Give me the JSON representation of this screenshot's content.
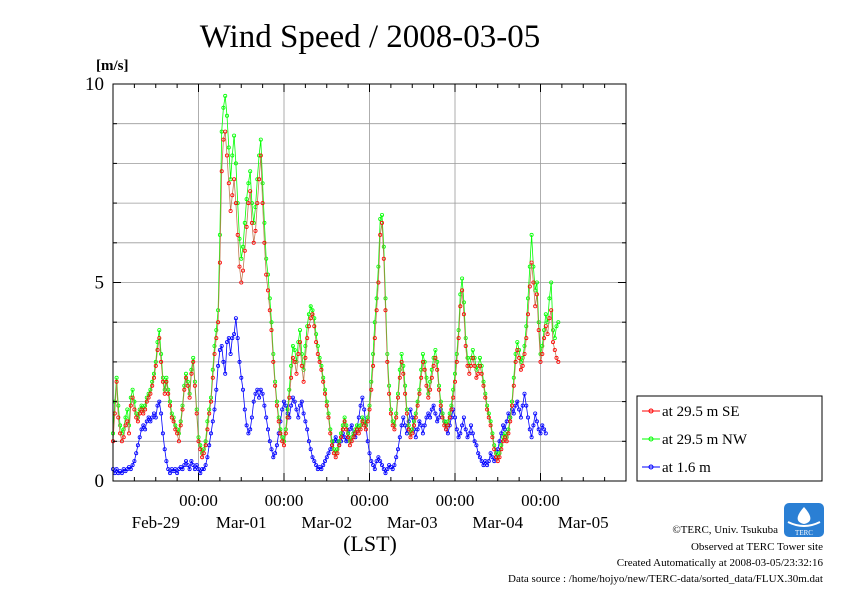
{
  "title": "Wind Speed / 2008-03-05",
  "chart_data": {
    "type": "line",
    "ylabel": "[m/s]",
    "xlabel": "(LST)",
    "ylim": [
      0,
      10
    ],
    "xlim": [
      "2008-02-29T00:00",
      "2008-03-06T00:00"
    ],
    "y_ticks": [
      "0",
      "5",
      "10"
    ],
    "time_tick_label": "00:00",
    "day_labels": [
      "Feb-29",
      "Mar-01",
      "Mar-02",
      "Mar-03",
      "Mar-04",
      "Mar-05"
    ],
    "grid": true,
    "legend_position": "right",
    "sample_interval_minutes": 30,
    "series": [
      {
        "name": "at 29.5 m SE",
        "color": "#ff0000",
        "marker": "circle",
        "values": [
          1.0,
          1.7,
          2.5,
          1.6,
          1.2,
          1.0,
          1.1,
          1.4,
          1.5,
          1.2,
          1.9,
          2.1,
          1.8,
          1.6,
          1.5,
          1.7,
          1.8,
          1.7,
          1.8,
          2.0,
          2.1,
          2.2,
          2.4,
          2.6,
          2.9,
          3.3,
          3.6,
          3.0,
          2.5,
          2.2,
          2.5,
          2.2,
          1.9,
          1.6,
          1.5,
          1.3,
          1.2,
          1.0,
          1.4,
          1.8,
          2.3,
          2.6,
          2.4,
          2.1,
          2.7,
          3.0,
          2.4,
          1.7,
          1.0,
          0.8,
          0.6,
          0.7,
          0.9,
          1.3,
          1.7,
          2.0,
          2.6,
          3.2,
          3.6,
          4.0,
          5.5,
          7.8,
          8.6,
          8.8,
          8.2,
          7.5,
          6.8,
          7.2,
          7.6,
          7.0,
          6.2,
          5.4,
          5.0,
          5.3,
          5.8,
          6.4,
          7.0,
          7.3,
          6.5,
          6.0,
          6.3,
          7.0,
          7.6,
          8.2,
          7.0,
          6.0,
          5.2,
          4.8,
          4.3,
          3.8,
          3.0,
          2.4,
          1.9,
          1.5,
          1.2,
          1.0,
          0.9,
          1.2,
          1.6,
          2.1,
          2.6,
          3.1,
          3.0,
          2.7,
          3.2,
          3.5,
          2.9,
          2.5,
          3.1,
          3.6,
          3.9,
          4.1,
          4.2,
          3.9,
          3.5,
          3.2,
          3.0,
          2.8,
          2.5,
          2.2,
          1.9,
          1.6,
          1.2,
          0.9,
          0.7,
          0.6,
          0.7,
          0.9,
          1.1,
          1.3,
          1.5,
          1.3,
          1.1,
          0.9,
          1.0,
          1.1,
          1.2,
          1.3,
          1.2,
          1.3,
          1.5,
          1.4,
          1.3,
          1.5,
          1.8,
          2.3,
          2.9,
          3.6,
          4.3,
          5.0,
          6.2,
          6.5,
          5.6,
          4.3,
          3.0,
          2.2,
          1.7,
          1.4,
          1.3,
          1.6,
          2.1,
          2.6,
          3.0,
          2.7,
          2.2,
          1.7,
          1.3,
          1.1,
          1.2,
          1.4,
          1.6,
          1.9,
          2.2,
          2.6,
          3.0,
          2.8,
          2.4,
          2.1,
          2.3,
          2.6,
          2.9,
          3.1,
          2.8,
          2.3,
          1.9,
          1.6,
          1.4,
          1.3,
          1.4,
          1.6,
          1.8,
          2.1,
          2.5,
          3.0,
          3.6,
          4.4,
          4.8,
          4.2,
          3.4,
          2.9,
          2.7,
          2.9,
          3.1,
          2.9,
          2.6,
          2.7,
          2.9,
          2.7,
          2.4,
          2.1,
          1.8,
          1.6,
          1.4,
          1.1,
          0.8,
          0.6,
          0.5,
          0.6,
          0.8,
          1.0,
          1.1,
          1.0,
          1.2,
          1.5,
          1.9,
          2.4,
          3.0,
          3.3,
          3.1,
          2.8,
          2.9,
          3.2,
          3.6,
          4.2,
          4.9,
          5.5,
          5.0,
          4.4,
          4.7,
          3.8,
          3.0,
          3.2,
          3.6,
          3.9,
          3.7,
          4.1,
          4.3,
          3.5,
          3.3,
          3.1,
          3.0
        ]
      },
      {
        "name": "at 29.5 m NW",
        "color": "#00ff00",
        "marker": "circle",
        "values": [
          1.2,
          2.0,
          2.6,
          1.9,
          1.4,
          1.2,
          1.3,
          1.6,
          1.8,
          1.4,
          2.1,
          2.3,
          2.0,
          1.7,
          1.6,
          1.8,
          1.9,
          1.8,
          1.9,
          2.1,
          2.2,
          2.3,
          2.5,
          2.7,
          3.0,
          3.5,
          3.8,
          3.2,
          2.6,
          2.3,
          2.6,
          2.3,
          2.0,
          1.7,
          1.6,
          1.4,
          1.3,
          1.2,
          1.5,
          1.9,
          2.4,
          2.7,
          2.5,
          2.2,
          2.8,
          3.1,
          2.5,
          1.8,
          1.1,
          0.9,
          0.7,
          0.8,
          1.0,
          1.5,
          1.8,
          2.1,
          2.8,
          3.4,
          3.8,
          4.3,
          6.2,
          8.8,
          9.4,
          9.7,
          9.2,
          8.4,
          7.6,
          8.2,
          8.7,
          8.0,
          7.0,
          6.1,
          5.6,
          5.9,
          6.5,
          7.1,
          7.5,
          7.8,
          7.0,
          6.5,
          6.9,
          7.6,
          8.2,
          8.6,
          7.5,
          6.5,
          5.6,
          5.2,
          4.6,
          4.0,
          3.2,
          2.5,
          2.0,
          1.6,
          1.3,
          1.1,
          1.0,
          1.3,
          1.8,
          2.3,
          2.9,
          3.4,
          3.3,
          3.0,
          3.5,
          3.8,
          3.2,
          2.8,
          3.4,
          3.9,
          4.2,
          4.4,
          4.3,
          4.1,
          3.7,
          3.4,
          3.1,
          2.9,
          2.6,
          2.3,
          2.0,
          1.7,
          1.3,
          1.0,
          0.8,
          0.7,
          0.8,
          1.0,
          1.2,
          1.4,
          1.6,
          1.4,
          1.2,
          1.0,
          1.1,
          1.2,
          1.3,
          1.4,
          1.3,
          1.4,
          1.6,
          1.5,
          1.4,
          1.6,
          1.9,
          2.5,
          3.2,
          4.0,
          4.6,
          5.4,
          6.6,
          6.7,
          5.9,
          4.6,
          3.2,
          2.4,
          1.8,
          1.5,
          1.4,
          1.7,
          2.2,
          2.8,
          3.2,
          2.9,
          2.4,
          1.8,
          1.4,
          1.2,
          1.3,
          1.5,
          1.7,
          2.0,
          2.3,
          2.8,
          3.2,
          3.0,
          2.6,
          2.2,
          2.5,
          2.8,
          3.1,
          3.3,
          3.0,
          2.4,
          2.0,
          1.7,
          1.5,
          1.4,
          1.5,
          1.7,
          1.9,
          2.3,
          2.7,
          3.2,
          3.8,
          4.7,
          5.1,
          4.5,
          3.6,
          3.1,
          2.9,
          3.1,
          3.3,
          3.1,
          2.8,
          2.9,
          3.1,
          2.9,
          2.5,
          2.2,
          1.9,
          1.7,
          1.5,
          1.2,
          0.9,
          0.7,
          0.6,
          0.7,
          0.9,
          1.1,
          1.2,
          1.1,
          1.3,
          1.6,
          2.0,
          2.6,
          3.2,
          3.5,
          3.3,
          3.0,
          3.1,
          3.4,
          3.9,
          4.6,
          5.4,
          6.2,
          5.4,
          4.8,
          5.0,
          4.0,
          3.2,
          3.4,
          3.8,
          4.2,
          4.0,
          4.6,
          5.0,
          3.8,
          3.6,
          3.9,
          4.0
        ]
      },
      {
        "name": "at 1.6 m",
        "color": "#0000ff",
        "marker": "circle",
        "values": [
          0.3,
          0.2,
          0.3,
          0.2,
          0.25,
          0.2,
          0.3,
          0.25,
          0.3,
          0.35,
          0.3,
          0.4,
          0.5,
          0.7,
          0.9,
          1.1,
          1.3,
          1.4,
          1.3,
          1.5,
          1.6,
          1.5,
          1.6,
          1.7,
          1.6,
          1.9,
          2.0,
          1.7,
          1.2,
          0.8,
          0.5,
          0.3,
          0.2,
          0.3,
          0.25,
          0.3,
          0.2,
          0.3,
          0.35,
          0.3,
          0.4,
          0.5,
          0.4,
          0.3,
          0.5,
          0.4,
          0.3,
          0.4,
          0.3,
          0.2,
          0.3,
          0.3,
          0.4,
          0.6,
          0.9,
          1.2,
          1.5,
          1.8,
          2.3,
          2.9,
          3.3,
          3.4,
          3.0,
          2.7,
          3.5,
          3.6,
          3.2,
          3.6,
          3.7,
          4.1,
          3.6,
          3.0,
          2.6,
          2.3,
          1.8,
          1.4,
          1.2,
          1.3,
          1.6,
          2.0,
          2.2,
          2.3,
          2.1,
          2.3,
          2.2,
          1.9,
          1.6,
          1.3,
          1.0,
          0.8,
          0.6,
          0.7,
          0.9,
          1.2,
          1.5,
          1.8,
          2.0,
          1.9,
          1.7,
          1.6,
          1.9,
          2.1,
          2.0,
          1.8,
          1.6,
          1.9,
          2.0,
          1.7,
          1.5,
          1.3,
          1.0,
          0.8,
          0.6,
          0.5,
          0.4,
          0.3,
          0.35,
          0.3,
          0.4,
          0.5,
          0.6,
          0.7,
          0.8,
          0.9,
          1.0,
          1.1,
          1.0,
          0.9,
          1.0,
          1.2,
          1.1,
          1.0,
          1.2,
          1.3,
          1.4,
          1.2,
          1.1,
          1.3,
          1.6,
          1.9,
          2.1,
          1.8,
          1.4,
          1.0,
          0.7,
          0.5,
          0.4,
          0.3,
          0.5,
          0.6,
          0.5,
          0.4,
          0.3,
          0.2,
          0.3,
          0.4,
          0.35,
          0.3,
          0.4,
          0.6,
          0.8,
          1.1,
          1.4,
          1.6,
          1.4,
          1.2,
          1.5,
          1.8,
          1.6,
          1.3,
          1.1,
          1.3,
          1.5,
          1.4,
          1.2,
          1.4,
          1.6,
          1.7,
          1.6,
          1.8,
          1.9,
          1.7,
          1.5,
          1.6,
          1.8,
          1.7,
          1.5,
          1.3,
          1.2,
          1.4,
          1.6,
          1.8,
          1.6,
          1.3,
          1.1,
          1.2,
          1.4,
          1.6,
          1.3,
          1.1,
          1.2,
          1.4,
          1.2,
          1.0,
          0.9,
          0.7,
          0.6,
          0.5,
          0.4,
          0.5,
          0.4,
          0.5,
          0.7,
          0.6,
          0.5,
          0.6,
          0.8,
          1.0,
          1.2,
          1.4,
          1.3,
          1.5,
          1.7,
          1.6,
          1.8,
          1.7,
          1.9,
          2.0,
          1.8,
          1.6,
          1.9,
          2.2,
          1.9,
          1.6,
          1.3,
          1.1,
          1.4,
          1.7,
          1.5,
          1.3,
          1.2,
          1.4,
          1.3,
          1.2
        ]
      }
    ]
  },
  "footer": {
    "copyright": "©TERC, Univ. Tsukuba",
    "site": "Observed at TERC Tower site",
    "created": "Created Automatically at 2008-03-05/23:32:16",
    "source": "Data source : /home/hojyo/new/TERC-data/sorted_data/FLUX.30m.dat",
    "logo_text": "TERC"
  }
}
